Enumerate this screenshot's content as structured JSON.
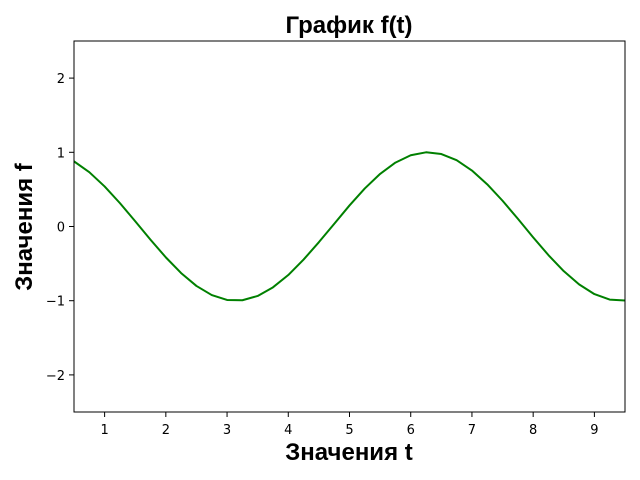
{
  "chart_data": {
    "type": "line",
    "title": "График f(t)",
    "xlabel": "Значения t",
    "ylabel": "Значения f",
    "xlim": [
      0.5,
      9.5
    ],
    "ylim": [
      -2.5,
      2.5
    ],
    "x_ticks": [
      1,
      2,
      3,
      4,
      5,
      6,
      7,
      8,
      9
    ],
    "x_tick_labels": [
      "1",
      "2",
      "3",
      "4",
      "5",
      "6",
      "7",
      "8",
      "9"
    ],
    "y_ticks": [
      -2,
      -1,
      0,
      1,
      2
    ],
    "y_tick_labels": [
      "−2",
      "−1",
      "0",
      "1",
      "2"
    ],
    "grid": false,
    "series": [
      {
        "color": "#008000",
        "x": [
          0.5,
          0.75,
          1.0,
          1.25,
          1.5,
          1.75,
          2.0,
          2.25,
          2.5,
          2.75,
          3.0,
          3.25,
          3.5,
          3.75,
          4.0,
          4.25,
          4.5,
          4.75,
          5.0,
          5.25,
          5.5,
          5.75,
          6.0,
          6.25,
          6.5,
          6.75,
          7.0,
          7.25,
          7.5,
          7.75,
          8.0,
          8.25,
          8.5,
          8.75,
          9.0,
          9.25,
          9.5
        ],
        "y": [
          0.878,
          0.732,
          0.54,
          0.315,
          0.071,
          -0.178,
          -0.416,
          -0.628,
          -0.801,
          -0.924,
          -0.99,
          -0.994,
          -0.936,
          -0.82,
          -0.654,
          -0.446,
          -0.211,
          0.036,
          0.284,
          0.513,
          0.709,
          0.861,
          0.96,
          1.0,
          0.977,
          0.894,
          0.754,
          0.568,
          0.347,
          0.104,
          -0.146,
          -0.386,
          -0.602,
          -0.78,
          -0.911,
          -0.985,
          -0.997
        ]
      }
    ]
  }
}
